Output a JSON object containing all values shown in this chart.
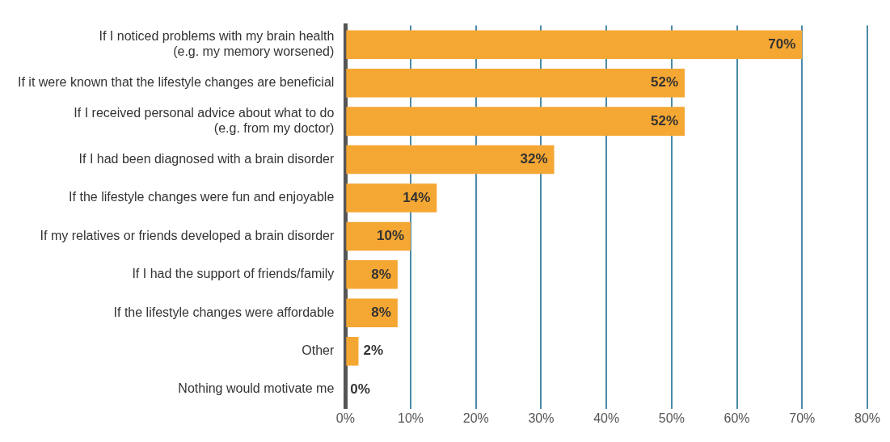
{
  "chart_data": {
    "type": "bar",
    "orientation": "horizontal",
    "categories": [
      "If I noticed problems with my brain health\n(e.g. my memory worsened)",
      "If it were known that the lifestyle changes are beneficial",
      "If I received personal advice about what to do\n(e.g. from my doctor)",
      "If I had been diagnosed with a brain disorder",
      "If the lifestyle changes were fun and enjoyable",
      "If my relatives or friends developed a brain disorder",
      "If I had the support of friends/family",
      "If the lifestyle changes were affordable",
      "Other",
      "Nothing would motivate me"
    ],
    "values": [
      70,
      52,
      52,
      32,
      14,
      10,
      8,
      8,
      2,
      0
    ],
    "value_labels": [
      "70%",
      "52%",
      "52%",
      "32%",
      "14%",
      "10%",
      "8%",
      "8%",
      "2%",
      "0%"
    ],
    "color": "#f5a733",
    "xlim": [
      0,
      80
    ],
    "xticks": [
      {
        "value": 0,
        "label": "0%"
      },
      {
        "value": 10,
        "label": "10%"
      },
      {
        "value": 20,
        "label": "20%"
      },
      {
        "value": 30,
        "label": "30%"
      },
      {
        "value": 40,
        "label": "40%"
      },
      {
        "value": 50,
        "label": "50%"
      },
      {
        "value": 60,
        "label": "60%"
      },
      {
        "value": 70,
        "label": "70%"
      },
      {
        "value": 80,
        "label": "80%"
      }
    ],
    "grid": "x",
    "legend": false
  }
}
